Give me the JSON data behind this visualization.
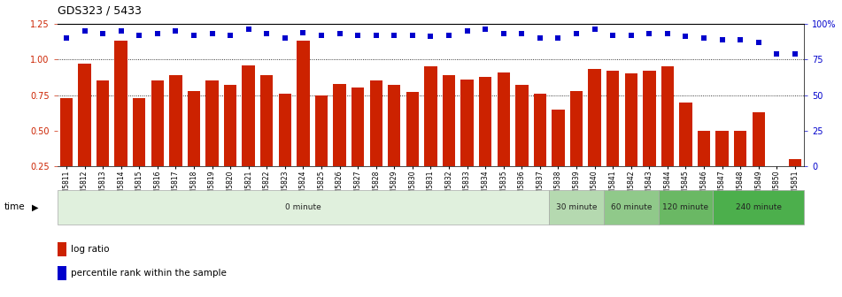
{
  "title": "GDS323 / 5433",
  "samples": [
    "GSM5811",
    "GSM5812",
    "GSM5813",
    "GSM5814",
    "GSM5815",
    "GSM5816",
    "GSM5817",
    "GSM5818",
    "GSM5819",
    "GSM5820",
    "GSM5821",
    "GSM5822",
    "GSM5823",
    "GSM5824",
    "GSM5825",
    "GSM5826",
    "GSM5827",
    "GSM5828",
    "GSM5829",
    "GSM5830",
    "GSM5831",
    "GSM5832",
    "GSM5833",
    "GSM5834",
    "GSM5835",
    "GSM5836",
    "GSM5837",
    "GSM5838",
    "GSM5839",
    "GSM5840",
    "GSM5841",
    "GSM5842",
    "GSM5843",
    "GSM5844",
    "GSM5845",
    "GSM5846",
    "GSM5847",
    "GSM5848",
    "GSM5849",
    "GSM5850",
    "GSM5851"
  ],
  "log_ratio": [
    0.73,
    0.97,
    0.85,
    1.13,
    0.73,
    0.85,
    0.89,
    0.78,
    0.85,
    0.82,
    0.96,
    0.89,
    0.76,
    1.13,
    0.75,
    0.83,
    0.8,
    0.85,
    0.82,
    0.77,
    0.95,
    0.89,
    0.86,
    0.88,
    0.91,
    0.82,
    0.76,
    0.65,
    0.78,
    0.93,
    0.92,
    0.9,
    0.92,
    0.95,
    0.7,
    0.5,
    0.5,
    0.5,
    0.63,
    0.22,
    0.3
  ],
  "percentile_rank": [
    90,
    95,
    93,
    95,
    92,
    93,
    95,
    92,
    93,
    92,
    96,
    93,
    90,
    94,
    92,
    93,
    92,
    92,
    92,
    92,
    91,
    92,
    95,
    96,
    93,
    93,
    90,
    90,
    93,
    96,
    92,
    92,
    93,
    93,
    91,
    90,
    89,
    89,
    87,
    79,
    79
  ],
  "time_groups": [
    {
      "label": "0 minute",
      "start": 0,
      "end": 27,
      "color": "#e0f0dd"
    },
    {
      "label": "30 minute",
      "start": 27,
      "end": 30,
      "color": "#b5d9b0"
    },
    {
      "label": "60 minute",
      "start": 30,
      "end": 33,
      "color": "#90c98a"
    },
    {
      "label": "120 minute",
      "start": 33,
      "end": 36,
      "color": "#6ab864"
    },
    {
      "label": "240 minute",
      "start": 36,
      "end": 41,
      "color": "#4caf4c"
    }
  ],
  "bar_color": "#cc2200",
  "dot_color": "#0000cc",
  "ylim_left": [
    0.25,
    1.25
  ],
  "ylim_right": [
    0,
    100
  ],
  "yticks_left": [
    0.25,
    0.5,
    0.75,
    1.0,
    1.25
  ],
  "yticks_right": [
    0,
    25,
    50,
    75,
    100
  ],
  "yticklabels_right": [
    "0",
    "25",
    "50",
    "75",
    "100%"
  ],
  "plot_bg": "#ffffff",
  "fig_bg": "#ffffff",
  "grid_lines_at": [
    0.75,
    1.0
  ],
  "dot_scale_min": 0.25,
  "dot_scale_max": 1.25
}
